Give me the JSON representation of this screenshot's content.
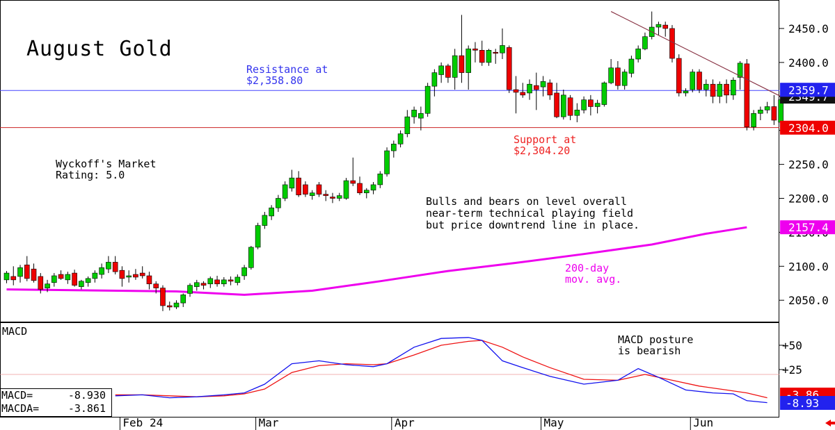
{
  "chart_data": [
    {
      "type": "candlestick",
      "title": "August Gold",
      "ylim": [
        2020,
        2480
      ],
      "ytick_labels": [
        "2450.0",
        "2400.0",
        "2350.0",
        "2300.0",
        "2250.0",
        "2200.0",
        "2150.0",
        "2100.0",
        "2050.0"
      ],
      "yticks": [
        2450,
        2400,
        2350,
        2300,
        2250,
        2200,
        2150,
        2100,
        2050
      ],
      "xtick_labels": [
        "Feb 24",
        "Mar",
        "Apr",
        "May",
        "Jun"
      ],
      "xtick_index": [
        17,
        37,
        57,
        79,
        101
      ],
      "up_color": "#00cc00",
      "down_color": "#ee0000",
      "candles": [
        {
          "o": 2080,
          "h": 2093,
          "l": 2075,
          "c": 2090
        },
        {
          "o": 2085,
          "h": 2100,
          "l": 2072,
          "c": 2080
        },
        {
          "o": 2085,
          "h": 2102,
          "l": 2076,
          "c": 2098
        },
        {
          "o": 2102,
          "h": 2115,
          "l": 2078,
          "c": 2082
        },
        {
          "o": 2096,
          "h": 2104,
          "l": 2076,
          "c": 2079
        },
        {
          "o": 2085,
          "h": 2090,
          "l": 2060,
          "c": 2066
        },
        {
          "o": 2068,
          "h": 2080,
          "l": 2062,
          "c": 2074
        },
        {
          "o": 2076,
          "h": 2090,
          "l": 2070,
          "c": 2086
        },
        {
          "o": 2088,
          "h": 2094,
          "l": 2080,
          "c": 2082
        },
        {
          "o": 2080,
          "h": 2092,
          "l": 2074,
          "c": 2088
        },
        {
          "o": 2090,
          "h": 2095,
          "l": 2070,
          "c": 2072
        },
        {
          "o": 2070,
          "h": 2080,
          "l": 2066,
          "c": 2078
        },
        {
          "o": 2076,
          "h": 2085,
          "l": 2070,
          "c": 2082
        },
        {
          "o": 2082,
          "h": 2094,
          "l": 2076,
          "c": 2090
        },
        {
          "o": 2088,
          "h": 2104,
          "l": 2082,
          "c": 2098
        },
        {
          "o": 2096,
          "h": 2115,
          "l": 2090,
          "c": 2106
        },
        {
          "o": 2106,
          "h": 2115,
          "l": 2088,
          "c": 2092
        },
        {
          "o": 2094,
          "h": 2100,
          "l": 2070,
          "c": 2082
        },
        {
          "o": 2084,
          "h": 2094,
          "l": 2076,
          "c": 2086
        },
        {
          "o": 2088,
          "h": 2096,
          "l": 2080,
          "c": 2084
        },
        {
          "o": 2090,
          "h": 2100,
          "l": 2082,
          "c": 2086
        },
        {
          "o": 2086,
          "h": 2092,
          "l": 2066,
          "c": 2074
        },
        {
          "o": 2074,
          "h": 2078,
          "l": 2060,
          "c": 2068
        },
        {
          "o": 2068,
          "h": 2072,
          "l": 2034,
          "c": 2042
        },
        {
          "o": 2042,
          "h": 2048,
          "l": 2035,
          "c": 2040
        },
        {
          "o": 2040,
          "h": 2050,
          "l": 2037,
          "c": 2046
        },
        {
          "o": 2046,
          "h": 2060,
          "l": 2040,
          "c": 2058
        },
        {
          "o": 2060,
          "h": 2075,
          "l": 2055,
          "c": 2072
        },
        {
          "o": 2070,
          "h": 2080,
          "l": 2064,
          "c": 2076
        },
        {
          "o": 2075,
          "h": 2078,
          "l": 2066,
          "c": 2072
        },
        {
          "o": 2074,
          "h": 2085,
          "l": 2068,
          "c": 2082
        },
        {
          "o": 2080,
          "h": 2086,
          "l": 2070,
          "c": 2074
        },
        {
          "o": 2074,
          "h": 2084,
          "l": 2070,
          "c": 2080
        },
        {
          "o": 2080,
          "h": 2085,
          "l": 2072,
          "c": 2078
        },
        {
          "o": 2076,
          "h": 2088,
          "l": 2072,
          "c": 2084
        },
        {
          "o": 2086,
          "h": 2102,
          "l": 2080,
          "c": 2098
        },
        {
          "o": 2098,
          "h": 2130,
          "l": 2095,
          "c": 2128
        },
        {
          "o": 2128,
          "h": 2164,
          "l": 2125,
          "c": 2160
        },
        {
          "o": 2160,
          "h": 2180,
          "l": 2155,
          "c": 2175
        },
        {
          "o": 2174,
          "h": 2190,
          "l": 2168,
          "c": 2186
        },
        {
          "o": 2186,
          "h": 2205,
          "l": 2180,
          "c": 2200
        },
        {
          "o": 2200,
          "h": 2225,
          "l": 2196,
          "c": 2220
        },
        {
          "o": 2215,
          "h": 2242,
          "l": 2210,
          "c": 2230
        },
        {
          "o": 2230,
          "h": 2240,
          "l": 2202,
          "c": 2205
        },
        {
          "o": 2220,
          "h": 2225,
          "l": 2202,
          "c": 2206
        },
        {
          "o": 2204,
          "h": 2212,
          "l": 2198,
          "c": 2208
        },
        {
          "o": 2220,
          "h": 2224,
          "l": 2202,
          "c": 2206
        },
        {
          "o": 2206,
          "h": 2212,
          "l": 2196,
          "c": 2204
        },
        {
          "o": 2202,
          "h": 2208,
          "l": 2193,
          "c": 2200
        },
        {
          "o": 2200,
          "h": 2208,
          "l": 2196,
          "c": 2204
        },
        {
          "o": 2200,
          "h": 2230,
          "l": 2198,
          "c": 2226
        },
        {
          "o": 2226,
          "h": 2260,
          "l": 2218,
          "c": 2222
        },
        {
          "o": 2222,
          "h": 2232,
          "l": 2205,
          "c": 2208
        },
        {
          "o": 2208,
          "h": 2215,
          "l": 2200,
          "c": 2212
        },
        {
          "o": 2212,
          "h": 2224,
          "l": 2206,
          "c": 2220
        },
        {
          "o": 2220,
          "h": 2240,
          "l": 2215,
          "c": 2236
        },
        {
          "o": 2236,
          "h": 2275,
          "l": 2232,
          "c": 2270
        },
        {
          "o": 2270,
          "h": 2285,
          "l": 2260,
          "c": 2280
        },
        {
          "o": 2280,
          "h": 2300,
          "l": 2275,
          "c": 2295
        },
        {
          "o": 2295,
          "h": 2330,
          "l": 2290,
          "c": 2320
        },
        {
          "o": 2320,
          "h": 2335,
          "l": 2310,
          "c": 2330
        },
        {
          "o": 2318,
          "h": 2335,
          "l": 2300,
          "c": 2325
        },
        {
          "o": 2325,
          "h": 2370,
          "l": 2320,
          "c": 2365
        },
        {
          "o": 2365,
          "h": 2390,
          "l": 2350,
          "c": 2385
        },
        {
          "o": 2382,
          "h": 2400,
          "l": 2370,
          "c": 2395
        },
        {
          "o": 2395,
          "h": 2398,
          "l": 2370,
          "c": 2378
        },
        {
          "o": 2378,
          "h": 2420,
          "l": 2360,
          "c": 2410
        },
        {
          "o": 2410,
          "h": 2470,
          "l": 2370,
          "c": 2385
        },
        {
          "o": 2385,
          "h": 2425,
          "l": 2360,
          "c": 2420
        },
        {
          "o": 2420,
          "h": 2430,
          "l": 2400,
          "c": 2418
        },
        {
          "o": 2418,
          "h": 2432,
          "l": 2395,
          "c": 2400
        },
        {
          "o": 2400,
          "h": 2420,
          "l": 2395,
          "c": 2418
        },
        {
          "o": 2415,
          "h": 2420,
          "l": 2398,
          "c": 2414
        },
        {
          "o": 2414,
          "h": 2450,
          "l": 2405,
          "c": 2425
        },
        {
          "o": 2422,
          "h": 2425,
          "l": 2355,
          "c": 2360
        },
        {
          "o": 2360,
          "h": 2380,
          "l": 2325,
          "c": 2356
        },
        {
          "o": 2356,
          "h": 2370,
          "l": 2348,
          "c": 2352
        },
        {
          "o": 2355,
          "h": 2375,
          "l": 2345,
          "c": 2368
        },
        {
          "o": 2366,
          "h": 2385,
          "l": 2330,
          "c": 2360
        },
        {
          "o": 2364,
          "h": 2380,
          "l": 2350,
          "c": 2372
        },
        {
          "o": 2370,
          "h": 2375,
          "l": 2345,
          "c": 2352
        },
        {
          "o": 2355,
          "h": 2370,
          "l": 2318,
          "c": 2320
        },
        {
          "o": 2320,
          "h": 2360,
          "l": 2316,
          "c": 2352
        },
        {
          "o": 2348,
          "h": 2352,
          "l": 2315,
          "c": 2322
        },
        {
          "o": 2322,
          "h": 2340,
          "l": 2312,
          "c": 2330
        },
        {
          "o": 2330,
          "h": 2350,
          "l": 2325,
          "c": 2345
        },
        {
          "o": 2345,
          "h": 2352,
          "l": 2322,
          "c": 2335
        },
        {
          "o": 2335,
          "h": 2345,
          "l": 2325,
          "c": 2340
        },
        {
          "o": 2338,
          "h": 2372,
          "l": 2335,
          "c": 2370
        },
        {
          "o": 2370,
          "h": 2405,
          "l": 2368,
          "c": 2392
        },
        {
          "o": 2392,
          "h": 2402,
          "l": 2360,
          "c": 2366
        },
        {
          "o": 2366,
          "h": 2390,
          "l": 2360,
          "c": 2386
        },
        {
          "o": 2384,
          "h": 2410,
          "l": 2378,
          "c": 2405
        },
        {
          "o": 2405,
          "h": 2425,
          "l": 2400,
          "c": 2420
        },
        {
          "o": 2420,
          "h": 2444,
          "l": 2418,
          "c": 2438
        },
        {
          "o": 2438,
          "h": 2475,
          "l": 2434,
          "c": 2452
        },
        {
          "o": 2452,
          "h": 2460,
          "l": 2440,
          "c": 2456
        },
        {
          "o": 2455,
          "h": 2460,
          "l": 2438,
          "c": 2450
        },
        {
          "o": 2450,
          "h": 2455,
          "l": 2400,
          "c": 2406
        },
        {
          "o": 2406,
          "h": 2412,
          "l": 2350,
          "c": 2355
        },
        {
          "o": 2355,
          "h": 2362,
          "l": 2350,
          "c": 2358
        },
        {
          "o": 2360,
          "h": 2390,
          "l": 2356,
          "c": 2386
        },
        {
          "o": 2386,
          "h": 2390,
          "l": 2355,
          "c": 2360
        },
        {
          "o": 2360,
          "h": 2375,
          "l": 2350,
          "c": 2368
        },
        {
          "o": 2368,
          "h": 2375,
          "l": 2340,
          "c": 2350
        },
        {
          "o": 2350,
          "h": 2372,
          "l": 2340,
          "c": 2368
        },
        {
          "o": 2368,
          "h": 2375,
          "l": 2340,
          "c": 2352
        },
        {
          "o": 2352,
          "h": 2378,
          "l": 2345,
          "c": 2374
        },
        {
          "o": 2378,
          "h": 2402,
          "l": 2360,
          "c": 2399
        },
        {
          "o": 2398,
          "h": 2405,
          "l": 2300,
          "c": 2305
        },
        {
          "o": 2305,
          "h": 2330,
          "l": 2300,
          "c": 2325
        },
        {
          "o": 2325,
          "h": 2335,
          "l": 2315,
          "c": 2330
        },
        {
          "o": 2330,
          "h": 2342,
          "l": 2325,
          "c": 2335
        },
        {
          "o": 2335,
          "h": 2352,
          "l": 2308,
          "c": 2315
        },
        {
          "o": 2312,
          "h": 2348,
          "l": 2308,
          "c": 2345
        }
      ],
      "ma200": {
        "label": "200-day\nmov. avg.",
        "color": "#ee00ee",
        "points": [
          [
            0,
            2066
          ],
          [
            25,
            2063
          ],
          [
            35,
            2058
          ],
          [
            45,
            2064
          ],
          [
            55,
            2078
          ],
          [
            65,
            2093
          ],
          [
            75,
            2105
          ],
          [
            85,
            2118
          ],
          [
            95,
            2132
          ],
          [
            103,
            2148
          ],
          [
            109,
            2157.4
          ]
        ]
      },
      "lines": {
        "resistance": {
          "value": 2358.8,
          "color": "#4444ff",
          "label": "Resistance at\n$2,358.80"
        },
        "support": {
          "value": 2304.2,
          "color": "#cc2222",
          "label": "Support at\n$2,304.20"
        },
        "downtrend": {
          "from": [
            89,
            2475
          ],
          "to": [
            115,
            2345
          ],
          "color": "#883344"
        }
      },
      "price_tags": [
        {
          "text": "2359.7",
          "value": 2359.7,
          "bg": "#2222ee",
          "fg": "#ffffff"
        },
        {
          "text": "2349.7",
          "value": 2349.7,
          "bg": "#111111",
          "fg": "#ffffff"
        },
        {
          "text": "2304.0",
          "value": 2304.0,
          "bg": "#ee0000",
          "fg": "#ffffff"
        },
        {
          "text": "2157.4",
          "value": 2157.4,
          "bg": "#ee00ee",
          "fg": "#ffffff"
        }
      ],
      "annotations": [
        {
          "text": "Wyckoff's Market\nRating: 5.0",
          "color": "#000000"
        },
        {
          "text": "Bulls and bears on level overall\nnear-term technical playing field\nbut price downtrend line in place.",
          "color": "#000000"
        }
      ]
    },
    {
      "type": "line",
      "title": "MACD",
      "ylim": [
        -20,
        68
      ],
      "ytick_labels": [
        "+50",
        "+25"
      ],
      "yticks": [
        50,
        25
      ],
      "zero_line": 20,
      "series": [
        {
          "name": "MACD",
          "color": "#1111ee",
          "points": [
            [
              16,
              -2
            ],
            [
              20,
              -1
            ],
            [
              24,
              -4
            ],
            [
              28,
              -3
            ],
            [
              32,
              -1
            ],
            [
              35,
              1
            ],
            [
              38,
              10
            ],
            [
              42,
              31
            ],
            [
              46,
              34
            ],
            [
              50,
              30
            ],
            [
              54,
              28
            ],
            [
              56,
              31
            ],
            [
              60,
              48
            ],
            [
              64,
              57
            ],
            [
              68,
              58
            ],
            [
              70,
              55
            ],
            [
              73,
              34
            ],
            [
              76,
              27
            ],
            [
              80,
              18
            ],
            [
              85,
              10
            ],
            [
              90,
              14
            ],
            [
              92,
              22
            ],
            [
              93,
              26
            ],
            [
              96,
              17
            ],
            [
              100,
              4
            ],
            [
              104,
              1
            ],
            [
              107,
              0
            ],
            [
              109,
              -7
            ],
            [
              112,
              -9
            ]
          ]
        },
        {
          "name": "MACDA",
          "color": "#ee1111",
          "points": [
            [
              16,
              -1
            ],
            [
              20,
              -1
            ],
            [
              24,
              -2
            ],
            [
              28,
              -3
            ],
            [
              32,
              -2
            ],
            [
              35,
              0
            ],
            [
              38,
              5
            ],
            [
              42,
              22
            ],
            [
              46,
              29
            ],
            [
              50,
              31
            ],
            [
              54,
              30
            ],
            [
              56,
              31
            ],
            [
              60,
              40
            ],
            [
              64,
              50
            ],
            [
              68,
              54
            ],
            [
              70,
              55
            ],
            [
              73,
              48
            ],
            [
              76,
              38
            ],
            [
              80,
              27
            ],
            [
              85,
              15
            ],
            [
              90,
              14
            ],
            [
              92,
              17
            ],
            [
              94,
              20
            ],
            [
              98,
              14
            ],
            [
              102,
              8
            ],
            [
              106,
              4
            ],
            [
              109,
              1
            ],
            [
              112,
              -4
            ]
          ]
        }
      ],
      "readouts": [
        {
          "label": "MACD=",
          "value": "-8.930"
        },
        {
          "label": "MACDA=",
          "value": "-3.861"
        }
      ],
      "price_tags": [
        {
          "text": "-8.93",
          "bg": "#2222ee",
          "fg": "#ffffff"
        },
        {
          "text": "-3.86",
          "bg": "#ee0000",
          "fg": "#ffffff"
        }
      ],
      "annotation": "MACD posture\nis bearish"
    }
  ]
}
